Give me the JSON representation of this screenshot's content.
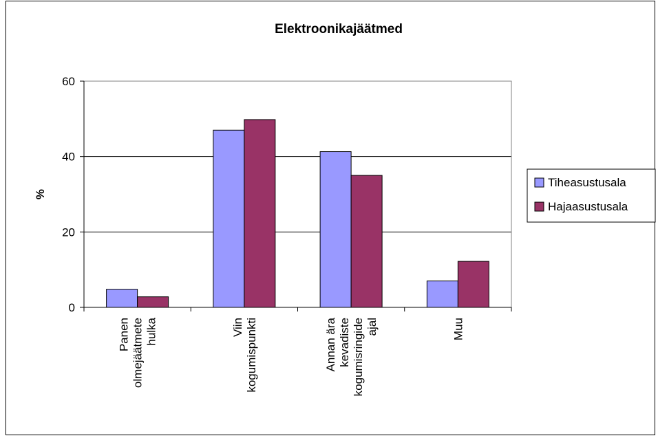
{
  "chart_data": {
    "type": "bar",
    "title": "Elektroonikajäätmed",
    "xlabel": "",
    "ylabel": "%",
    "ylim": [
      0,
      60
    ],
    "yticks": [
      0,
      20,
      40,
      60
    ],
    "grid": true,
    "legend_position": "right",
    "categories": [
      [
        "Panen",
        "olmejäätmete",
        "hulka"
      ],
      [
        "Viin",
        "kogumispunkti"
      ],
      [
        "Annan ära",
        "kevadiste",
        "kogumisringide",
        "ajal"
      ],
      [
        "Muu"
      ]
    ],
    "series": [
      {
        "name": "Tiheasustusala",
        "color": "#9999ff",
        "values": [
          4.8,
          47.0,
          41.3,
          7.0
        ]
      },
      {
        "name": "Hajaasustusala",
        "color": "#993366",
        "values": [
          2.8,
          49.8,
          35.0,
          12.2
        ]
      }
    ]
  }
}
